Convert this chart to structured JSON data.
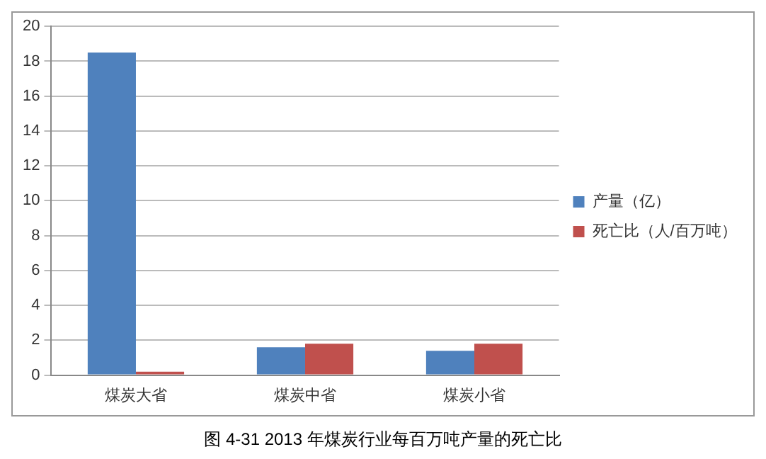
{
  "chart_data": {
    "type": "bar",
    "title": "图 4-31 2013 年煤炭行业每百万吨产量的死亡比",
    "categories": [
      "煤炭大省",
      "煤炭中省",
      "煤炭小省"
    ],
    "series": [
      {
        "name": "产量（亿）",
        "color": "#4f81bd",
        "values": [
          18.5,
          1.6,
          1.4
        ]
      },
      {
        "name": "死亡比（人/百万吨）",
        "color": "#c0504d",
        "values": [
          0.2,
          1.8,
          1.8
        ]
      }
    ],
    "ylim": [
      0,
      20
    ],
    "yticks": [
      0,
      2,
      4,
      6,
      8,
      10,
      12,
      14,
      16,
      18,
      20
    ],
    "grid": "y",
    "legend": "right"
  }
}
